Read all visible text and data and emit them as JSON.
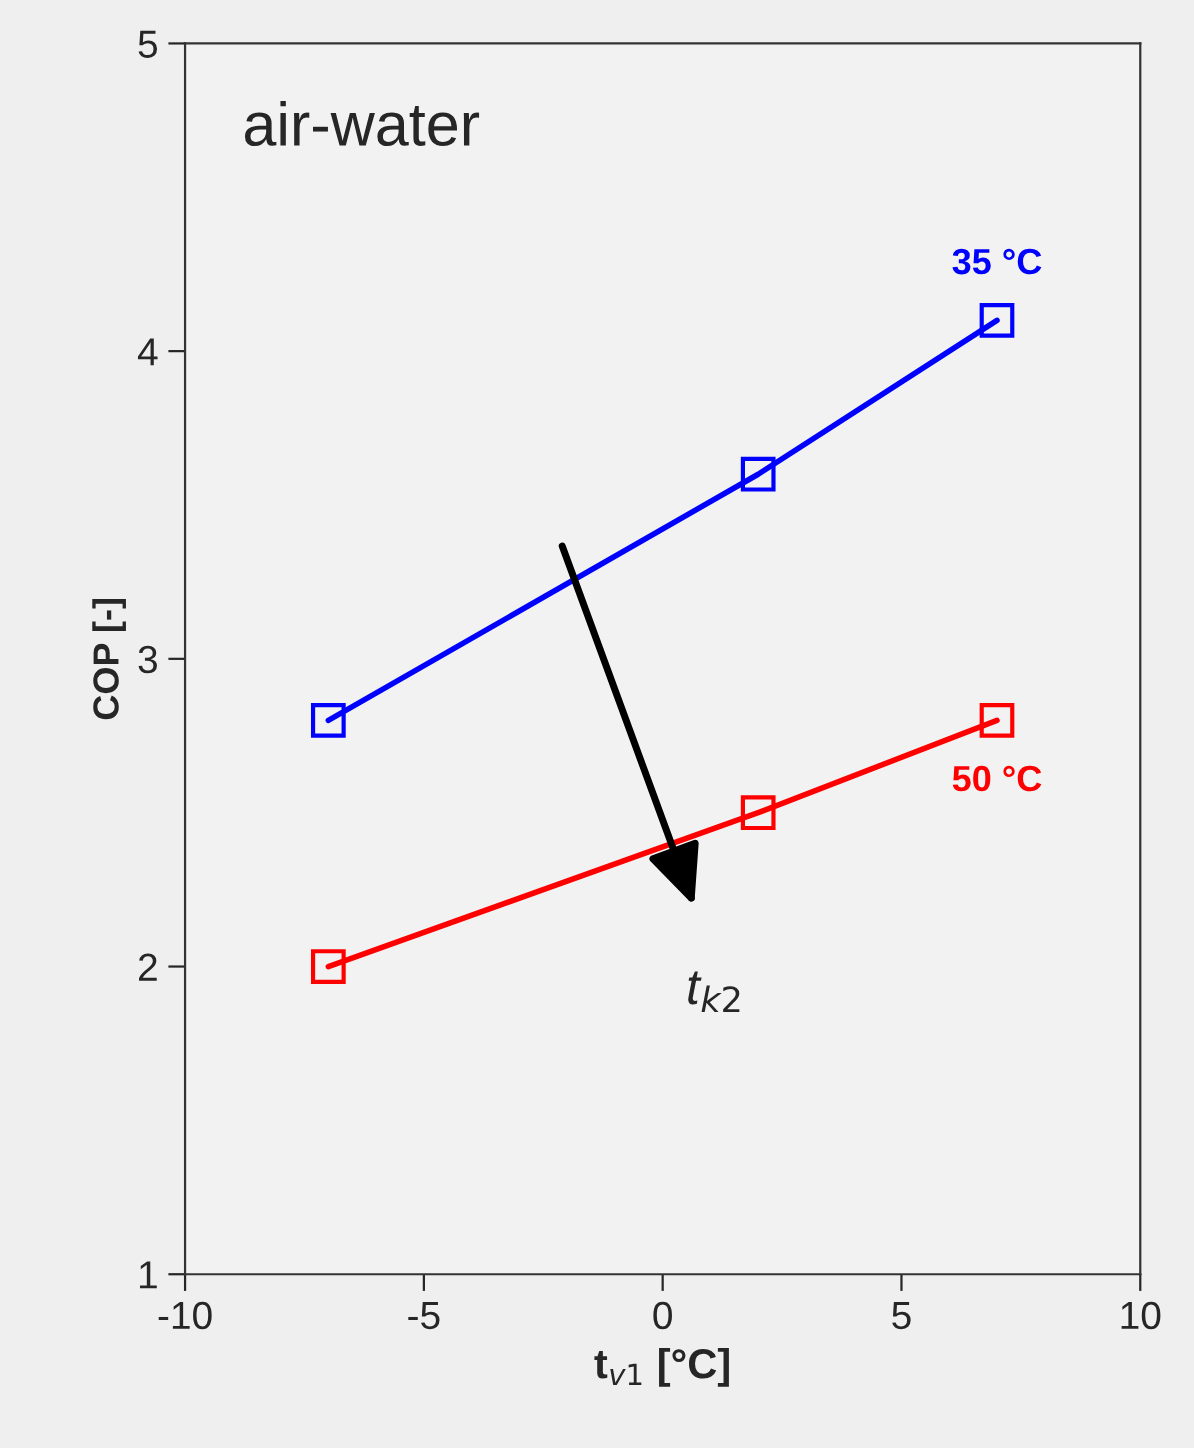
{
  "chart_data": {
    "type": "line",
    "xlabel": "t$_{v1}$ [°C]",
    "ylabel": "COP [-]",
    "x": [
      -7,
      2,
      7
    ],
    "series": [
      {
        "name": "35 °C",
        "color": "#0000ff",
        "values": [
          2.8,
          3.6,
          4.1
        ]
      },
      {
        "name": "50 °C",
        "color": "#ff0000",
        "values": [
          2.0,
          2.5,
          2.8
        ]
      }
    ],
    "annotations": [
      "air-water",
      "t$_{k2}$"
    ],
    "xlim": [
      -10,
      10
    ],
    "xticks": [
      -10,
      -5,
      0,
      5,
      10
    ],
    "ylim": [
      1,
      5
    ],
    "yticks": [
      1,
      2,
      3,
      4,
      5
    ],
    "marker": "square",
    "line_style": "solid",
    "grid": false,
    "legend": false
  }
}
